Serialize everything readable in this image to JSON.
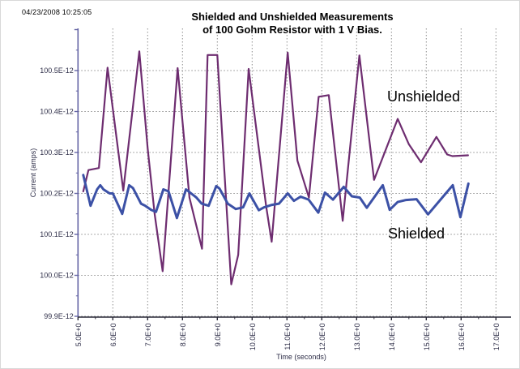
{
  "header": {
    "timestamp": "04/23/2008 10:25:05"
  },
  "chart_data": {
    "type": "line",
    "title": "Shielded and Unshielded Measurements of 100 Gohm Resistor with 1 V Bias.",
    "title_lines": [
      "Shielded and Unshielded Measurements",
      "of 100 Gohm Resistor with 1 V Bias."
    ],
    "xlabel": "Time (seconds)",
    "ylabel": "Current (amps)",
    "xlim": [
      5,
      17.45
    ],
    "ylim": [
      99.9,
      100.6
    ],
    "grid": "dotted",
    "legend_position": "in-plot-text-annotations",
    "x_tick_values": [
      5,
      6,
      7,
      8,
      9,
      10,
      11,
      12,
      13,
      14,
      15,
      16,
      17
    ],
    "x_tick_labels": [
      "5.0E+0",
      "6.0E+0",
      "7.0E+0",
      "8.0E+0",
      "9.0E+0",
      "10.0E+0",
      "11.0E+0",
      "12.0E+0",
      "13.0E+0",
      "14.0E+0",
      "15.0E+0",
      "16.0E+0",
      "17.0E+0"
    ],
    "x_minor_tick_step": 0.5,
    "y_tick_values": [
      100.5,
      100.4,
      100.3,
      100.2,
      100.1,
      100.0,
      99.9
    ],
    "y_tick_labels": [
      "100.5E-12",
      "100.4E-12",
      "100.3E-12",
      "100.2E-12",
      "100.1E-12",
      "100.0E-12",
      "99.9E-12"
    ],
    "y_minor_tick_step": 0.05,
    "colors": {
      "unshielded": "#6e2d70",
      "shielded": "#3c51a6",
      "grid": "#8f8f8f",
      "x_axis": "#2a2a38",
      "y_axis": "#6565a5",
      "tick_text": "#2e2e48"
    },
    "annotations": [
      {
        "text": "Unshielded"
      },
      {
        "text": "Shielded"
      }
    ],
    "series": [
      {
        "name": "Unshielded",
        "color": "#6e2d70",
        "line_width": 2.2,
        "points": [
          [
            5.15,
            100.205
          ],
          [
            5.3,
            100.257
          ],
          [
            5.6,
            100.262
          ],
          [
            5.85,
            100.507
          ],
          [
            6.3,
            100.207
          ],
          [
            6.76,
            100.547
          ],
          [
            7.0,
            100.31
          ],
          [
            7.2,
            100.15
          ],
          [
            7.43,
            100.01
          ],
          [
            7.86,
            100.506
          ],
          [
            8.2,
            100.19
          ],
          [
            8.56,
            100.065
          ],
          [
            8.72,
            100.538
          ],
          [
            9.0,
            100.538
          ],
          [
            9.4,
            99.978
          ],
          [
            9.6,
            100.05
          ],
          [
            9.9,
            100.504
          ],
          [
            10.4,
            100.17
          ],
          [
            10.56,
            100.082
          ],
          [
            11.02,
            100.544
          ],
          [
            11.3,
            100.28
          ],
          [
            11.63,
            100.19
          ],
          [
            11.91,
            100.436
          ],
          [
            12.2,
            100.44
          ],
          [
            12.6,
            100.133
          ],
          [
            13.08,
            100.537
          ],
          [
            13.5,
            100.233
          ],
          [
            14.18,
            100.382
          ],
          [
            14.5,
            100.32
          ],
          [
            14.85,
            100.276
          ],
          [
            15.29,
            100.338
          ],
          [
            15.6,
            100.295
          ],
          [
            15.75,
            100.291
          ],
          [
            16.2,
            100.293
          ]
        ]
      },
      {
        "name": "Shielded",
        "color": "#3c51a6",
        "line_width": 3,
        "points": [
          [
            5.15,
            100.245
          ],
          [
            5.36,
            100.17
          ],
          [
            5.55,
            100.21
          ],
          [
            5.64,
            100.22
          ],
          [
            5.73,
            100.21
          ],
          [
            5.91,
            100.2
          ],
          [
            6.0,
            100.2
          ],
          [
            6.27,
            100.15
          ],
          [
            6.47,
            100.22
          ],
          [
            6.58,
            100.213
          ],
          [
            6.81,
            100.175
          ],
          [
            6.93,
            100.17
          ],
          [
            7.1,
            100.16
          ],
          [
            7.24,
            100.155
          ],
          [
            7.45,
            100.21
          ],
          [
            7.6,
            100.205
          ],
          [
            7.84,
            100.14
          ],
          [
            8.1,
            100.21
          ],
          [
            8.4,
            100.19
          ],
          [
            8.55,
            100.175
          ],
          [
            8.75,
            100.17
          ],
          [
            8.97,
            100.218
          ],
          [
            9.06,
            100.212
          ],
          [
            9.3,
            100.175
          ],
          [
            9.53,
            100.162
          ],
          [
            9.74,
            100.166
          ],
          [
            9.92,
            100.2
          ],
          [
            10.19,
            100.159
          ],
          [
            10.34,
            100.166
          ],
          [
            10.57,
            100.172
          ],
          [
            10.77,
            100.175
          ],
          [
            11.02,
            100.2
          ],
          [
            11.2,
            100.182
          ],
          [
            11.39,
            100.192
          ],
          [
            11.62,
            100.185
          ],
          [
            11.9,
            100.153
          ],
          [
            12.09,
            100.202
          ],
          [
            12.32,
            100.185
          ],
          [
            12.63,
            100.216
          ],
          [
            12.86,
            100.193
          ],
          [
            13.09,
            100.19
          ],
          [
            13.29,
            100.165
          ],
          [
            13.75,
            100.22
          ],
          [
            13.95,
            100.16
          ],
          [
            14.18,
            100.179
          ],
          [
            14.42,
            100.184
          ],
          [
            14.72,
            100.186
          ],
          [
            15.05,
            100.149
          ],
          [
            15.45,
            100.189
          ],
          [
            15.76,
            100.22
          ],
          [
            15.98,
            100.142
          ],
          [
            16.21,
            100.224
          ]
        ]
      }
    ]
  }
}
